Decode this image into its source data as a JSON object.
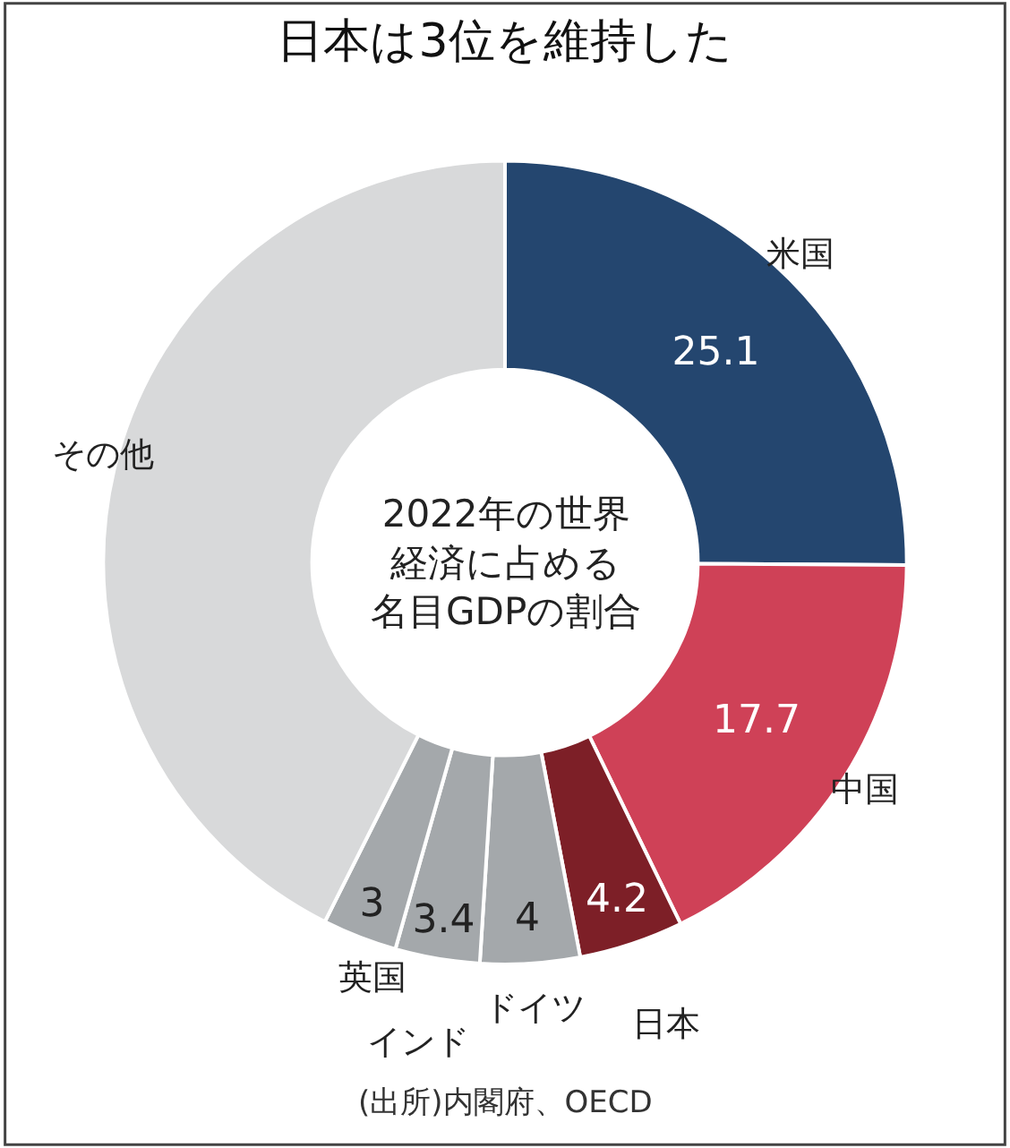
{
  "chart_data": {
    "type": "donut",
    "title": "日本は3位を維持した",
    "subtitle": "2022年の世界経済に占める名目GDPの割合",
    "categories": [
      "米国",
      "中国",
      "日本",
      "ドイツ",
      "インド",
      "英国",
      "その他"
    ],
    "values": [
      25.1,
      17.7,
      4.2,
      4,
      3.4,
      3,
      42.6
    ],
    "value_labels": [
      "25.1",
      "17.7",
      "4.2",
      "4",
      "3.4",
      "3",
      null
    ],
    "colors": [
      "#24466f",
      "#cf4157",
      "#7d1f27",
      "#a4a8ab",
      "#a4a8ab",
      "#a4a8ab",
      "#d8d9da"
    ],
    "annotations": [
      "(出所)内閣府、OECD"
    ],
    "legend": false
  }
}
